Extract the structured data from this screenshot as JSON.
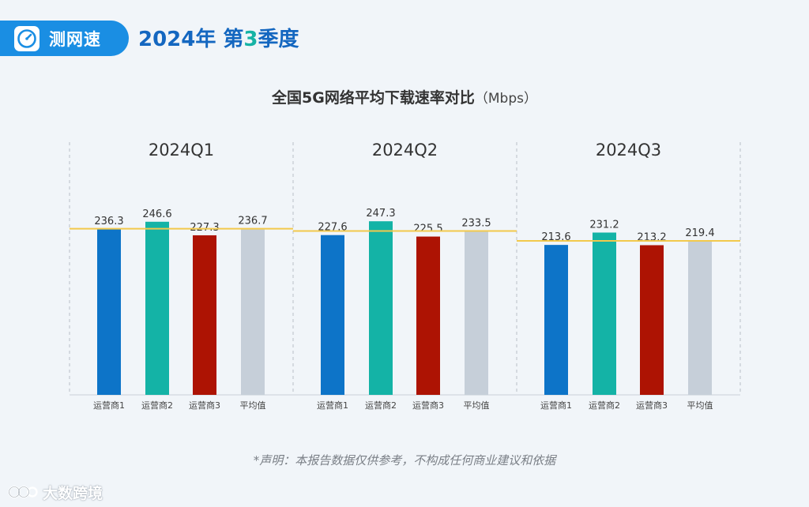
{
  "header": {
    "brand": "测网速",
    "brand_icon": "speedometer-icon",
    "report_title_prefix": "2024年 第",
    "report_title_num": "3",
    "report_title_suffix": "季度"
  },
  "colors": {
    "brand_blue": "#1a8ee3",
    "title_blue": "#1467c0",
    "title_teal": "#16b3a5",
    "operator1": "#0d74c8",
    "operator2": "#14b3a6",
    "operator3": "#ad1303",
    "average": "#c6cfd9",
    "average_line": "#f2c94c"
  },
  "chart_data": {
    "type": "bar",
    "title": "全国5G网络平均下载速率对比",
    "unit": "（Mbps）",
    "categories": [
      "运营商1",
      "运营商2",
      "运营商3",
      "平均值"
    ],
    "ylim": [
      0,
      270
    ],
    "reference_line": "平均值",
    "groups": [
      {
        "label": "2024Q1",
        "values": [
          236.3,
          246.6,
          227.3,
          236.7
        ]
      },
      {
        "label": "2024Q2",
        "values": [
          227.6,
          247.3,
          225.5,
          233.5
        ]
      },
      {
        "label": "2024Q3",
        "values": [
          213.6,
          231.2,
          213.2,
          219.4
        ]
      }
    ]
  },
  "footer": {
    "disclaimer": "*声明：本报告数据仅供参考，不构成任何商业建议和依据",
    "watermark": "大数跨境"
  }
}
